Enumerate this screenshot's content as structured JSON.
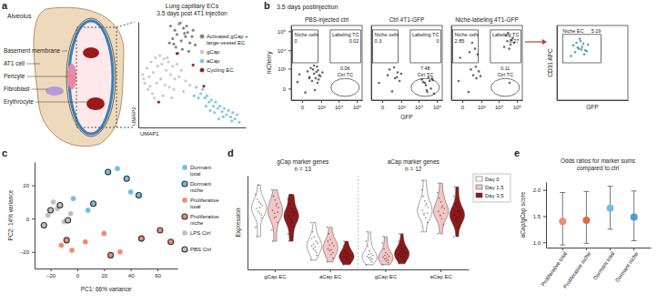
{
  "chart_data": [
    {
      "type": "diagram",
      "panel": "a",
      "title": "Alveolus",
      "labels": [
        "Basement membrane",
        "AT1 cell",
        "Pericyte",
        "Fibroblast",
        "Erythrocyte"
      ]
    },
    {
      "type": "scatter",
      "title": "Lung capillary ECs",
      "subtitle": "3.5 days post 4T1 injection",
      "xlabel": "UMAP1",
      "ylabel": "UMAP2",
      "xlim": [
        0,
        10
      ],
      "ylim": [
        0,
        10
      ],
      "tick_labels": false,
      "legend": "right",
      "series": [
        {
          "name": "Activated gCap + large-vessel EC",
          "color": "#7f7f7f",
          "marker": "circle",
          "x": [
            3.0,
            3.4,
            3.8,
            4.2,
            4.6,
            5.0,
            3.2,
            3.6,
            4.0,
            4.4,
            4.8,
            5.3,
            3.5,
            4.1,
            4.7,
            3.9,
            4.5,
            3.3,
            4.3,
            5.1,
            2.9,
            3.7
          ],
          "y": [
            9.6,
            9.2,
            9.8,
            9.4,
            9.0,
            8.6,
            8.4,
            8.8,
            8.2,
            8.6,
            8.0,
            7.8,
            7.6,
            7.4,
            7.2,
            9.9,
            9.6,
            7.9,
            8.9,
            9.2,
            8.0,
            7.0
          ]
        },
        {
          "name": "gCap",
          "color": "#c8c8c8",
          "marker": "circle",
          "x": [
            0.4,
            0.8,
            1.2,
            1.6,
            2.0,
            2.4,
            2.8,
            3.2,
            3.6,
            4.0,
            0.6,
            1.0,
            1.4,
            1.8,
            2.2,
            2.6,
            3.0,
            3.4,
            3.8,
            4.4,
            0.9,
            1.3,
            1.7,
            2.1,
            2.5,
            2.9,
            3.3,
            1.5,
            2.3,
            3.1,
            4.2,
            4.8,
            0.5,
            1.1,
            2.7
          ],
          "y": [
            5.0,
            5.6,
            6.2,
            6.6,
            6.8,
            6.5,
            6.2,
            5.8,
            6.0,
            5.4,
            4.2,
            4.8,
            5.2,
            5.8,
            6.0,
            5.4,
            5.0,
            4.6,
            4.8,
            4.4,
            3.6,
            3.2,
            4.2,
            4.6,
            4.0,
            3.8,
            3.6,
            2.8,
            3.0,
            2.8,
            3.4,
            4.0,
            4.6,
            3.9,
            6.6
          ]
        },
        {
          "name": "aCap",
          "color": "#7fc4e8",
          "marker": "circle",
          "x": [
            5.4,
            5.8,
            6.2,
            6.6,
            7.0,
            7.4,
            7.8,
            8.2,
            8.6,
            9.0,
            9.4,
            6.0,
            6.4,
            6.8,
            7.2,
            7.6,
            8.0,
            8.4,
            8.8,
            5.6,
            6.3,
            7.1,
            7.9,
            8.7,
            9.2,
            6.7,
            7.5,
            5.2
          ],
          "y": [
            3.8,
            3.2,
            2.8,
            2.4,
            2.0,
            1.8,
            1.5,
            1.2,
            1.0,
            0.8,
            0.5,
            3.6,
            3.0,
            2.6,
            2.4,
            2.0,
            1.8,
            1.6,
            1.4,
            2.8,
            2.0,
            1.4,
            1.0,
            0.6,
            1.2,
            1.6,
            0.8,
            3.0
          ]
        },
        {
          "name": "Cycling EC",
          "color": "#8b1a1a",
          "marker": "circle",
          "x": [
            3.6,
            1.9,
            6.1,
            5.1
          ],
          "y": [
            7.0,
            2.4,
            3.9,
            5.9
          ]
        }
      ]
    },
    {
      "type": "scatter",
      "panel": "b",
      "supertitle": "3.5 days postinjection",
      "title": "PBS-injected ctrl",
      "ylabel": "mCherry",
      "log": true,
      "color": "#3a3a3a",
      "xlim": [
        -300,
        200000
      ],
      "ylim": [
        -300,
        200000
      ],
      "xticks": [
        0,
        {
          "value": 1000,
          "label": "10³"
        },
        {
          "value": 10000,
          "label": "10⁴"
        },
        {
          "value": 100000,
          "label": "10⁵"
        }
      ],
      "yticks": [
        0,
        {
          "value": 1000,
          "label": "10³"
        },
        {
          "value": 10000,
          "label": "10⁴"
        },
        {
          "value": 100000,
          "label": "10⁵"
        }
      ],
      "gates": [
        {
          "label": "Niche cells",
          "value": 0
        },
        {
          "label": "Labeling TC",
          "value": 0.02
        },
        {
          "label": "Ctrl TC",
          "value": 0.06
        }
      ],
      "x": [
        -80,
        50,
        150,
        250,
        350,
        450,
        600,
        750,
        100,
        300,
        500,
        700,
        200,
        400,
        900,
        1200,
        -40,
        650,
        350,
        150,
        550
      ],
      "y": [
        120,
        -60,
        300,
        150,
        500,
        250,
        100,
        400,
        700,
        900,
        650,
        200,
        1100,
        -20,
        350,
        600,
        450,
        800,
        1500,
        250,
        1300
      ]
    },
    {
      "type": "scatter",
      "title": "Ctrl 4T1-GFP",
      "xlabel": "GFP",
      "log": true,
      "color": "#3a3a3a",
      "tick_labels": "x",
      "xlim": [
        -300,
        200000
      ],
      "ylim": [
        -300,
        200000
      ],
      "xticks": [
        0,
        {
          "value": 1000,
          "label": "10³"
        },
        {
          "value": 10000,
          "label": "10⁴"
        },
        {
          "value": 100000,
          "label": "10⁵"
        }
      ],
      "gates": [
        {
          "label": "Niche cells",
          "value": 0.3
        },
        {
          "label": "Labeling TC",
          "value": 0
        },
        {
          "label": "Ctrl TC",
          "value": 7.48
        }
      ],
      "x": [
        -50,
        100,
        250,
        400,
        600,
        800,
        150,
        350,
        550,
        1000,
        15000,
        22000,
        30000,
        40000,
        55000,
        70000,
        25000,
        35000,
        48000,
        18000,
        60000,
        28000
      ],
      "y": [
        100,
        400,
        -40,
        250,
        600,
        150,
        900,
        1200,
        300,
        500,
        200,
        100,
        -50,
        150,
        250,
        -80,
        50,
        300,
        0,
        120,
        180,
        -20
      ]
    },
    {
      "type": "scatter",
      "title": "Niche-labeling 4T1-GFP",
      "log": true,
      "color": "#3a3a3a",
      "tick_labels": "x",
      "xlim": [
        -300,
        200000
      ],
      "ylim": [
        -300,
        200000
      ],
      "xticks": [
        0,
        {
          "value": 1000,
          "label": "10³"
        },
        {
          "value": 10000,
          "label": "10⁴"
        },
        {
          "value": 100000,
          "label": "10⁵"
        }
      ],
      "gates": [
        {
          "label": "Niche cells",
          "value": 2.85
        },
        {
          "label": "Labeling TC",
          "value": 8.27
        },
        {
          "label": "Ctrl TC",
          "value": 0.11
        }
      ],
      "x": [
        -60,
        120,
        300,
        500,
        700,
        200,
        450,
        900,
        -30,
        150,
        400,
        600,
        250,
        20000,
        30000,
        45000,
        60000,
        25000,
        38000,
        52000,
        33000,
        70000,
        40000
      ],
      "y": [
        150,
        -50,
        400,
        250,
        700,
        900,
        1300,
        350,
        4000,
        8000,
        12000,
        6000,
        25000,
        15000,
        30000,
        20000,
        45000,
        60000,
        12000,
        35000,
        80000,
        25000,
        100
      ]
    },
    {
      "type": "scatter",
      "xlabel": "GFP",
      "ylabel": "CD31 APC",
      "log": true,
      "color": "#2c7bb6",
      "tick_labels": false,
      "xlim": [
        -300,
        200000
      ],
      "ylim": [
        -300,
        200000
      ],
      "gates": [
        {
          "label": "Niche EC",
          "value": 5.19
        }
      ],
      "x": [
        50,
        150,
        300,
        500,
        800,
        1200,
        200,
        400,
        700,
        100,
        350,
        600,
        1000,
        250,
        450
      ],
      "y": [
        5000,
        8000,
        12000,
        15000,
        10000,
        20000,
        25000,
        30000,
        6000,
        18000,
        40000,
        22000,
        9000,
        14000,
        11000
      ]
    },
    {
      "type": "scatter",
      "panel": "c",
      "xlabel": "PC1: 66% variance",
      "ylabel": "PC2: 14% variance",
      "xlim": [
        -32,
        75
      ],
      "ylim": [
        -30,
        34
      ],
      "xticks": [
        {
          "value": -20,
          "label": "–20"
        },
        0,
        20,
        40,
        60
      ],
      "yticks": [
        {
          "value": -20,
          "label": "–20"
        },
        0,
        20
      ],
      "legend": "right",
      "series": [
        {
          "name": "Dormant total",
          "color": "#6cc0e8",
          "marker": "circle",
          "x": [
            -3,
            8,
            30,
            40
          ],
          "y": [
            12,
            5,
            30,
            16
          ]
        },
        {
          "name": "Dormant niche",
          "color": "#6cc0e8",
          "marker": "ring",
          "x": [
            23,
            37,
            46,
            12
          ],
          "y": [
            28,
            24,
            14,
            9
          ]
        },
        {
          "name": "Proliferative total",
          "color": "#f08c6e",
          "marker": "circle",
          "x": [
            -12,
            -4,
            6,
            20,
            32
          ],
          "y": [
            -16,
            -19,
            -14,
            -9,
            -20
          ]
        },
        {
          "name": "Proliferative niche",
          "color": "#f08c6e",
          "marker": "ring",
          "x": [
            -8,
            25,
            48,
            62,
            70
          ],
          "y": [
            -13,
            -22,
            -12,
            -7,
            -14
          ]
        },
        {
          "name": "LPS Ctrl",
          "color": "#c0c0c0",
          "marker": "circle",
          "x": [
            -22,
            -15,
            -10,
            -18,
            -5
          ],
          "y": [
            2,
            6,
            -2,
            10,
            3
          ]
        },
        {
          "name": "PBS Ctrl",
          "color": "#c0c0c0",
          "marker": "ring",
          "x": [
            -25,
            -13,
            -20,
            -7
          ],
          "y": [
            -4,
            8,
            5,
            -1
          ]
        }
      ]
    },
    {
      "type": "violin",
      "panel": "d",
      "ylabel": "Expression",
      "ylim": [
        0,
        1
      ],
      "tick_labels": "x",
      "legend": "upper right",
      "groups": [
        {
          "title": "gCap marker genes",
          "n_label": "n = 13"
        },
        {
          "title": "aCap marker genes",
          "n_label": "n = 12"
        }
      ],
      "categories": [
        "gCap EC",
        "aCap EC",
        "gCap EC",
        "aCap EC"
      ],
      "series": [
        {
          "name": "Day 0",
          "color": "#ffffff",
          "values": [
            [
              0.45,
              0.55,
              0.6,
              0.62,
              0.65,
              0.68,
              0.7,
              0.72,
              0.75,
              0.8,
              0.58,
              0.66,
              0.9,
              0.35
            ],
            [
              0.1,
              0.15,
              0.2,
              0.22,
              0.25,
              0.28,
              0.3,
              0.35,
              0.4,
              0.5,
              0.18,
              0.24,
              0.27,
              0.33
            ],
            [
              0.05,
              0.08,
              0.1,
              0.12,
              0.14,
              0.15,
              0.17,
              0.2,
              0.25,
              0.3,
              0.11,
              0.13,
              0.16,
              0.4
            ],
            [
              0.4,
              0.5,
              0.55,
              0.6,
              0.63,
              0.66,
              0.7,
              0.73,
              0.78,
              0.85,
              0.6,
              0.68,
              0.58,
              0.95
            ]
          ]
        },
        {
          "name": "Day 1.5",
          "color": "#f4c6c6",
          "values": [
            [
              0.42,
              0.5,
              0.56,
              0.6,
              0.63,
              0.66,
              0.7,
              0.74,
              0.78,
              0.85,
              0.61,
              0.68,
              0.55,
              0.3
            ],
            [
              0.08,
              0.12,
              0.16,
              0.2,
              0.22,
              0.25,
              0.28,
              0.32,
              0.38,
              0.45,
              0.18,
              0.21,
              0.26,
              0.3
            ],
            [
              0.05,
              0.07,
              0.09,
              0.11,
              0.13,
              0.14,
              0.16,
              0.18,
              0.22,
              0.28,
              0.1,
              0.12,
              0.15,
              0.35
            ],
            [
              0.38,
              0.48,
              0.54,
              0.58,
              0.62,
              0.65,
              0.68,
              0.72,
              0.76,
              0.82,
              0.6,
              0.66,
              0.57,
              0.92
            ]
          ]
        },
        {
          "name": "Day 3.5",
          "color": "#8b1a1a",
          "values": [
            [
              0.38,
              0.45,
              0.5,
              0.54,
              0.57,
              0.6,
              0.62,
              0.65,
              0.7,
              0.75,
              0.58,
              0.52,
              0.8,
              0.3
            ],
            [
              0.05,
              0.08,
              0.1,
              0.12,
              0.13,
              0.15,
              0.16,
              0.18,
              0.2,
              0.25,
              0.11,
              0.14,
              0.17,
              0.3
            ],
            [
              0.06,
              0.09,
              0.12,
              0.14,
              0.16,
              0.18,
              0.2,
              0.22,
              0.25,
              0.3,
              0.13,
              0.17,
              0.19,
              0.38
            ],
            [
              0.35,
              0.45,
              0.5,
              0.55,
              0.58,
              0.6,
              0.63,
              0.67,
              0.7,
              0.78,
              0.56,
              0.62,
              0.52,
              0.88
            ]
          ]
        }
      ]
    },
    {
      "type": "scatter",
      "panel": "e",
      "title": "Odds ratios for marker sums compared to ctrl",
      "ylabel": "aCap/gCap score",
      "categories": [
        "Proliferative total",
        "Proliferative niche",
        "Dormant total",
        "Dormant niche"
      ],
      "values": [
        1.4,
        1.42,
        1.65,
        1.48
      ],
      "error_low": [
        0.95,
        0.98,
        1.25,
        1.03
      ],
      "error_high": [
        1.95,
        1.97,
        2.07,
        1.98
      ],
      "colors": [
        "#f08c6e",
        "#e0694a",
        "#6cc0e8",
        "#4a9fd0"
      ],
      "ylim": [
        0.9,
        2.15
      ],
      "yticks": [
        {
          "value": 1,
          "label": "1.0"
        },
        {
          "value": 1.5,
          "label": "1.5"
        },
        {
          "value": 2,
          "label": "2.0"
        }
      ]
    }
  ]
}
